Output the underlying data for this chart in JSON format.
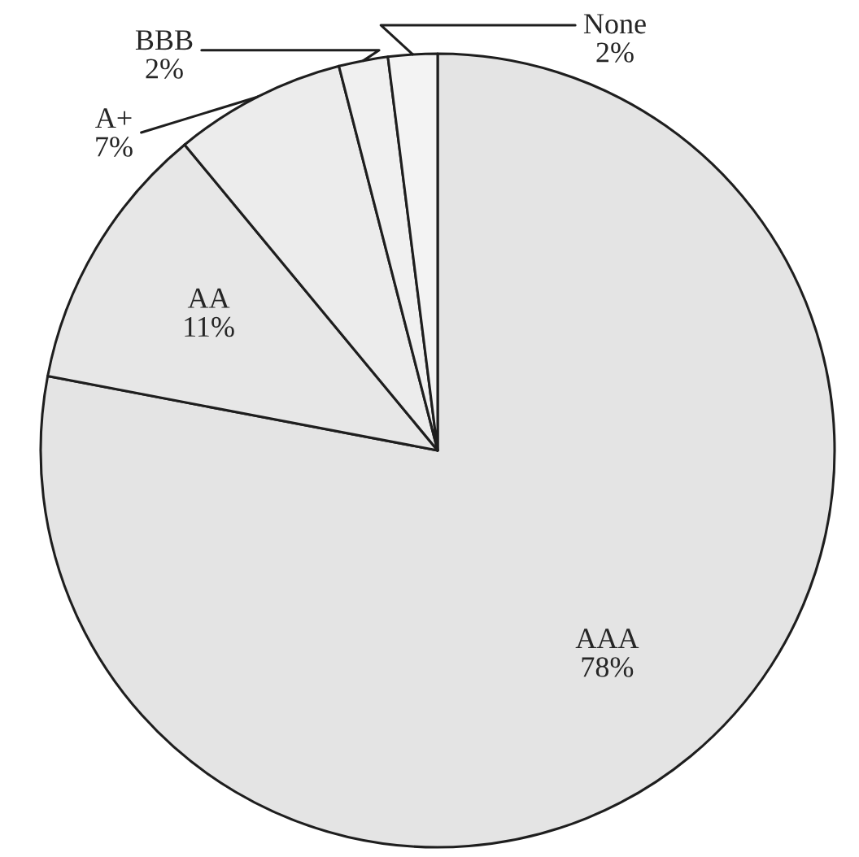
{
  "chart_data": {
    "type": "pie",
    "categories": [
      "AAA",
      "AA",
      "A+",
      "BBB",
      "None"
    ],
    "values": [
      78,
      11,
      7,
      2,
      2
    ],
    "value_labels": [
      "78%",
      "11%",
      "7%",
      "2%",
      "2%"
    ],
    "colors": [
      "#e4e4e4",
      "#e7e7e7",
      "#ececec",
      "#f0f0f0",
      "#f3f3f3"
    ]
  }
}
